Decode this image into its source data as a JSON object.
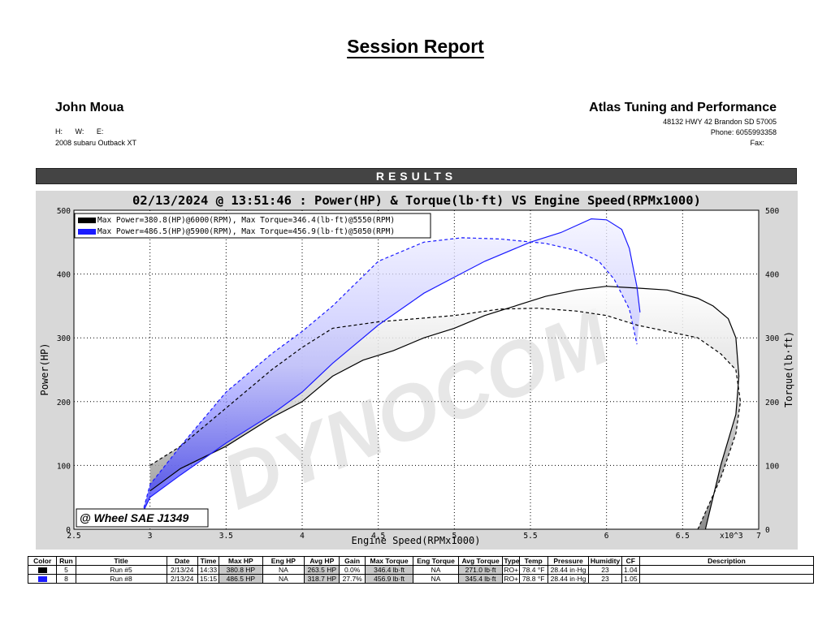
{
  "report_title": "Session Report",
  "customer": {
    "name": "John Moua",
    "contact_labels": [
      "H:",
      "W:",
      "E:"
    ],
    "vehicle": "2008 subaru Outback XT"
  },
  "shop": {
    "name": "Atlas Tuning and Performance",
    "address": "48132 HWY 42 Brandon SD 57005",
    "phone": "Phone: 6055993358",
    "fax": "Fax:"
  },
  "results_label": "RESULTS",
  "stamp": "@ Wheel SAE J1349",
  "watermark": "DYNOCOM",
  "colors": {
    "run5": "#000000",
    "run8": "#1a1aff",
    "results_bar": "#444444"
  },
  "chart_data": {
    "type": "line",
    "title": "02/13/2024 @ 13:51:46 : Power(HP) & Torque(lb·ft) VS Engine Speed(RPMx1000)",
    "xlabel": "Engine Speed(RPMx1000)",
    "xunit": "x10^3",
    "ylabel": "Power(HP)",
    "y2label": "Torque(lb·ft)",
    "xlim": [
      2.5,
      7
    ],
    "ylim": [
      0,
      500
    ],
    "y2lim": [
      0,
      500
    ],
    "xticks": [
      "2.5",
      "3",
      "3.5",
      "4",
      "4.5",
      "5",
      "5.5",
      "6",
      "6.5",
      "7"
    ],
    "yticks": [
      "0",
      "100",
      "200",
      "300",
      "400",
      "500"
    ],
    "grid": true,
    "legend_position": "top-left",
    "series": [
      {
        "name": "Max Power=380.8(HP)@6000(RPM), Max Torque=346.4(lb·ft)@5550(RPM)",
        "color": "#000000",
        "power": [
          [
            3.0,
            60
          ],
          [
            3.2,
            95
          ],
          [
            3.5,
            130
          ],
          [
            3.8,
            175
          ],
          [
            4.0,
            200
          ],
          [
            4.2,
            240
          ],
          [
            4.4,
            265
          ],
          [
            4.6,
            280
          ],
          [
            4.8,
            300
          ],
          [
            5.0,
            315
          ],
          [
            5.2,
            335
          ],
          [
            5.4,
            350
          ],
          [
            5.6,
            365
          ],
          [
            5.8,
            375
          ],
          [
            6.0,
            380.8
          ],
          [
            6.2,
            378
          ],
          [
            6.4,
            375
          ],
          [
            6.6,
            362
          ],
          [
            6.7,
            350
          ],
          [
            6.8,
            330
          ],
          [
            6.85,
            300
          ],
          [
            6.87,
            240
          ],
          [
            6.85,
            180
          ],
          [
            6.75,
            100
          ],
          [
            6.65,
            0
          ]
        ],
        "torque": [
          [
            3.0,
            100
          ],
          [
            3.2,
            130
          ],
          [
            3.5,
            190
          ],
          [
            3.8,
            250
          ],
          [
            4.0,
            285
          ],
          [
            4.2,
            315
          ],
          [
            4.5,
            325
          ],
          [
            5.0,
            335
          ],
          [
            5.3,
            345
          ],
          [
            5.55,
            346.4
          ],
          [
            5.8,
            342
          ],
          [
            6.0,
            335
          ],
          [
            6.2,
            320
          ],
          [
            6.4,
            310
          ],
          [
            6.6,
            300
          ],
          [
            6.75,
            275
          ],
          [
            6.85,
            250
          ],
          [
            6.88,
            200
          ],
          [
            6.85,
            150
          ],
          [
            6.75,
            80
          ],
          [
            6.6,
            0
          ]
        ]
      },
      {
        "name": "Max Power=486.5(HP)@5900(RPM), Max Torque=456.9(lb·ft)@5050(RPM)",
        "color": "#1a1aff",
        "power": [
          [
            2.95,
            25
          ],
          [
            3.0,
            50
          ],
          [
            3.2,
            85
          ],
          [
            3.5,
            135
          ],
          [
            3.8,
            180
          ],
          [
            4.0,
            215
          ],
          [
            4.2,
            260
          ],
          [
            4.5,
            320
          ],
          [
            4.8,
            370
          ],
          [
            5.0,
            395
          ],
          [
            5.2,
            420
          ],
          [
            5.5,
            450
          ],
          [
            5.7,
            465
          ],
          [
            5.9,
            486.5
          ],
          [
            6.0,
            485
          ],
          [
            6.1,
            470
          ],
          [
            6.15,
            440
          ],
          [
            6.2,
            380
          ],
          [
            6.22,
            340
          ]
        ],
        "torque": [
          [
            2.95,
            25
          ],
          [
            3.0,
            70
          ],
          [
            3.2,
            130
          ],
          [
            3.5,
            215
          ],
          [
            3.8,
            275
          ],
          [
            4.0,
            310
          ],
          [
            4.2,
            350
          ],
          [
            4.5,
            420
          ],
          [
            4.8,
            450
          ],
          [
            5.05,
            456.9
          ],
          [
            5.3,
            455
          ],
          [
            5.6,
            448
          ],
          [
            5.8,
            437
          ],
          [
            5.95,
            420
          ],
          [
            6.05,
            392
          ],
          [
            6.15,
            345
          ],
          [
            6.2,
            290
          ]
        ]
      }
    ]
  },
  "table": {
    "headers": [
      "Color",
      "Run",
      "Title",
      "Date",
      "Time",
      "Max HP",
      "Eng HP",
      "Avg HP",
      "Gain",
      "Max Torque",
      "Eng Torque",
      "Avg Torque",
      "Type",
      "Temp",
      "Pressure",
      "Humidity",
      "CF",
      "Description"
    ],
    "rows": [
      {
        "run": "5",
        "title": "Run #5",
        "date": "2/13/24",
        "time": "14:33",
        "max_hp": "380.8 HP",
        "eng_hp": "NA",
        "avg_hp": "263.5 HP",
        "gain": "0.0%",
        "max_torque": "346.4 lb·ft",
        "eng_torque": "NA",
        "avg_torque": "271.0 lb·ft",
        "type": "RO+",
        "temp": "78.4 °F",
        "pressure": "28.44 in·Hg",
        "humidity": "23",
        "cf": "1.04",
        "description": ""
      },
      {
        "run": "8",
        "title": "Run #8",
        "date": "2/13/24",
        "time": "15:15",
        "max_hp": "486.5 HP",
        "eng_hp": "NA",
        "avg_hp": "318.7 HP",
        "gain": "27.7%",
        "max_torque": "456.9 lb·ft",
        "eng_torque": "NA",
        "avg_torque": "345.4 lb·ft",
        "type": "RO+",
        "temp": "78.8 °F",
        "pressure": "28.44 in·Hg",
        "humidity": "23",
        "cf": "1.05",
        "description": ""
      }
    ]
  }
}
